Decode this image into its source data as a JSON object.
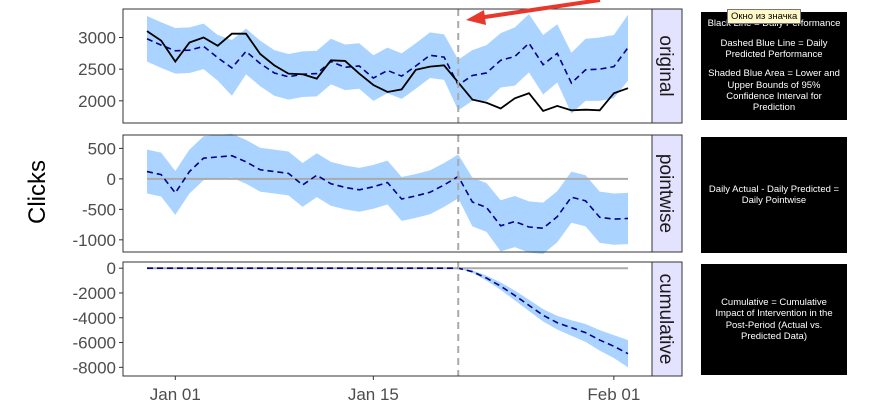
{
  "chart_data": {
    "type": "line",
    "ylabel": "Clicks",
    "x_tick_labels": [
      "Jan 01",
      "Jan 15",
      "Feb 01"
    ],
    "intervention_index": 22,
    "colors": {
      "actual": "#000000",
      "predicted": "#00008b",
      "interval": "#aad4ff",
      "zero_line": "#aaaaaa",
      "intervention_line": "#aaaaaa",
      "strip": "#e3e3ff"
    },
    "panels": [
      {
        "name": "original",
        "ylim": [
          1650,
          3450
        ],
        "yticks": [
          2000,
          2500,
          3000
        ],
        "ytick_labels": [
          "2000",
          "2500",
          "3000"
        ],
        "series": [
          {
            "name": "actual",
            "values": [
              3100,
              2950,
              2620,
              2920,
              3000,
              2870,
              3060,
              3060,
              2740,
              2560,
              2430,
              2420,
              2350,
              2640,
              2630,
              2430,
              2250,
              2140,
              2180,
              2490,
              2540,
              2560,
              2290,
              2020,
              1970,
              1880,
              2040,
              2120,
              1840,
              1920,
              1850,
              1860,
              1850,
              2120,
              2200
            ]
          },
          {
            "name": "predicted",
            "values": [
              2980,
              2880,
              2790,
              2800,
              2860,
              2680,
              2520,
              2780,
              2590,
              2440,
              2380,
              2420,
              2430,
              2620,
              2530,
              2550,
              2360,
              2480,
              2390,
              2550,
              2720,
              2690,
              2250,
              2400,
              2440,
              2640,
              2700,
              2910,
              2570,
              2750,
              2280,
              2490,
              2500,
              2540,
              2840
            ]
          },
          {
            "name": "lower",
            "values": [
              2620,
              2520,
              2430,
              2440,
              2500,
              2320,
              2080,
              2420,
              2230,
              2080,
              2020,
              2060,
              2070,
              2260,
              2170,
              2190,
              2000,
              2120,
              2030,
              2190,
              2360,
              2330,
              1850,
              2000,
              2000,
              2210,
              2240,
              2450,
              2100,
              2290,
              1800,
              2000,
              2000,
              2040,
              2320
            ]
          },
          {
            "name": "upper",
            "values": [
              3340,
              3240,
              3150,
              3160,
              3220,
              3040,
              2960,
              3140,
              2950,
              2800,
              2740,
              2780,
              2790,
              2980,
              2890,
              2910,
              2720,
              2840,
              2750,
              2910,
              3080,
              3050,
              2650,
              2800,
              2880,
              3070,
              3160,
              3370,
              3040,
              3210,
              2760,
              2980,
              3000,
              3040,
              3360
            ]
          }
        ]
      },
      {
        "name": "pointwise",
        "ylim": [
          -1200,
          720
        ],
        "yticks": [
          -1000,
          -500,
          0,
          500
        ],
        "ytick_labels": [
          "-1000",
          "-500",
          "0",
          "500"
        ],
        "series": [
          {
            "name": "zero",
            "values": [
              0
            ]
          },
          {
            "name": "predicted",
            "values": [
              120,
              70,
              -230,
              120,
              340,
              360,
              380,
              280,
              150,
              120,
              90,
              -100,
              60,
              -80,
              -140,
              -180,
              -130,
              -60,
              -330,
              -280,
              -220,
              -100,
              40,
              -380,
              -470,
              -770,
              -700,
              -790,
              -810,
              -620,
              -300,
              -360,
              -630,
              -660,
              -650
            ]
          },
          {
            "name": "lower",
            "values": [
              -240,
              -290,
              -590,
              -240,
              -20,
              0,
              20,
              -80,
              -210,
              -240,
              -270,
              -460,
              -300,
              -440,
              -500,
              -540,
              -490,
              -420,
              -690,
              -640,
              -580,
              -460,
              -320,
              -780,
              -870,
              -1190,
              -1120,
              -1210,
              -1230,
              -1040,
              -720,
              -780,
              -1050,
              -1080,
              -1070
            ]
          },
          {
            "name": "upper",
            "values": [
              480,
              430,
              130,
              480,
              700,
              720,
              740,
              640,
              510,
              480,
              450,
              260,
              420,
              280,
              220,
              180,
              230,
              300,
              30,
              80,
              140,
              260,
              400,
              20,
              -70,
              -350,
              -280,
              -370,
              -390,
              -200,
              120,
              60,
              -210,
              -240,
              -230
            ]
          }
        ]
      },
      {
        "name": "cumulative",
        "ylim": [
          -8700,
          500
        ],
        "yticks": [
          -8000,
          -6000,
          -4000,
          -2000,
          0
        ],
        "ytick_labels": [
          "-8000",
          "-6000",
          "-4000",
          "-2000",
          "0"
        ],
        "series": [
          {
            "name": "zero",
            "values": [
              0
            ]
          },
          {
            "name": "predicted",
            "values": [
              0,
              0,
              0,
              0,
              0,
              0,
              0,
              0,
              0,
              0,
              0,
              0,
              0,
              0,
              0,
              0,
              0,
              0,
              0,
              0,
              0,
              0,
              0,
              -280,
              -800,
              -1450,
              -2200,
              -3000,
              -3800,
              -4400,
              -4800,
              -5200,
              -5800,
              -6300,
              -6900
            ]
          },
          {
            "name": "lower",
            "values": [
              0,
              0,
              0,
              0,
              0,
              0,
              0,
              0,
              0,
              0,
              0,
              0,
              0,
              0,
              0,
              0,
              0,
              0,
              0,
              0,
              0,
              0,
              0,
              -380,
              -1000,
              -1750,
              -2600,
              -3450,
              -4300,
              -4950,
              -5450,
              -5950,
              -6650,
              -7250,
              -8000
            ]
          },
          {
            "name": "upper",
            "values": [
              0,
              0,
              0,
              0,
              0,
              0,
              0,
              0,
              0,
              0,
              0,
              0,
              0,
              0,
              0,
              0,
              0,
              0,
              0,
              0,
              0,
              0,
              0,
              -180,
              -600,
              -1150,
              -1800,
              -2550,
              -3300,
              -3850,
              -4200,
              -4500,
              -5000,
              -5400,
              -5800
            ]
          }
        ]
      }
    ]
  },
  "notes": {
    "original": [
      "Black Line = Daily Performance",
      "Dashed Blue Line = Daily Predicted Performance",
      "Shaded Blue Area = Lower and Upper Bounds of 95% Confidence Interval for Prediction"
    ],
    "pointwise": [
      "Daily Actual - Daily Predicted = Daily Pointwise"
    ],
    "cumulative": [
      "Cumulative = Cumulative Impact of Intervention in the Post-Period (Actual vs. Predicted Data)"
    ]
  },
  "tooltip": {
    "text": "Окно из значка"
  },
  "annotation": {
    "arrow_color": "#e8382b"
  }
}
